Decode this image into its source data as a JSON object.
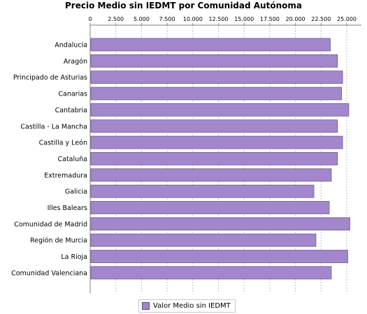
{
  "chart_data": {
    "type": "bar",
    "orientation": "horizontal",
    "title": "Precio Medio sin IEDMT por Comunidad Autónoma",
    "categories": [
      "Andalucía",
      "Aragón",
      "Principado de Asturias",
      "Canarias",
      "Cantabria",
      "Castilla - La Mancha",
      "Castilla y León",
      "Cataluña",
      "Extremadura",
      "Galicia",
      "Illes Balears",
      "Comunidad de Madrid",
      "Región de Murcia",
      "La Rioja",
      "Comunidad Valenciana"
    ],
    "series": [
      {
        "name": "Valor Medio sin IEDMT",
        "values": [
          23400,
          24100,
          24600,
          24500,
          25200,
          24100,
          24600,
          24100,
          23500,
          21800,
          23300,
          25300,
          22000,
          25100,
          23500
        ],
        "color": "#a287cc"
      }
    ],
    "ticks": [
      "0",
      "2.500",
      "5.000",
      "7.500",
      "10.000",
      "12.500",
      "15.000",
      "17.500",
      "20.000",
      "22.500",
      "25.000"
    ],
    "xlim": [
      0,
      26500
    ],
    "axis_position": "top",
    "grid": true,
    "legend_position": "bottom"
  }
}
